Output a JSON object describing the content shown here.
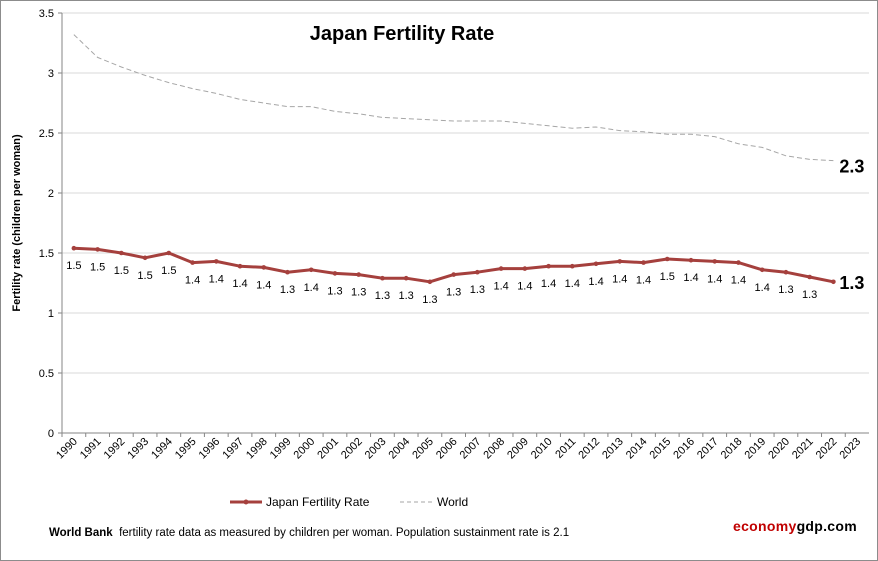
{
  "chart_data": {
    "type": "line",
    "title": "Japan Fertility Rate",
    "xlabel": "",
    "ylabel": "Fertility rate (children per woman)",
    "ylim": [
      0,
      3.5
    ],
    "yticks": [
      "0",
      "0.5",
      "1",
      "1.5",
      "2",
      "2.5",
      "3",
      "3.5"
    ],
    "grid": true,
    "legend": "bottom",
    "categories": [
      "1990",
      "1991",
      "1992",
      "1993",
      "1994",
      "1995",
      "1996",
      "1997",
      "1998",
      "1999",
      "2000",
      "2001",
      "2002",
      "2003",
      "2004",
      "2005",
      "2006",
      "2007",
      "2008",
      "2009",
      "2010",
      "2011",
      "2012",
      "2013",
      "2014",
      "2015",
      "2016",
      "2017",
      "2018",
      "2019",
      "2020",
      "2021",
      "2022",
      "2023"
    ],
    "series": [
      {
        "name": "Japan Fertility Rate",
        "color": "#a5403d",
        "values": [
          1.54,
          1.53,
          1.5,
          1.46,
          1.5,
          1.42,
          1.43,
          1.39,
          1.38,
          1.34,
          1.36,
          1.33,
          1.32,
          1.29,
          1.29,
          1.26,
          1.32,
          1.34,
          1.37,
          1.37,
          1.39,
          1.39,
          1.41,
          1.43,
          1.42,
          1.45,
          1.44,
          1.43,
          1.42,
          1.36,
          1.34,
          1.3,
          1.26,
          null
        ],
        "data_labels": [
          "1.5",
          "1.5",
          "1.5",
          "1.5",
          "1.5",
          "1.4",
          "1.4",
          "1.4",
          "1.4",
          "1.3",
          "1.4",
          "1.3",
          "1.3",
          "1.3",
          "1.3",
          "1.3",
          "1.3",
          "1.3",
          "1.4",
          "1.4",
          "1.4",
          "1.4",
          "1.4",
          "1.4",
          "1.4",
          "1.5",
          "1.4",
          "1.4",
          "1.4",
          "1.4",
          "1.3",
          "1.3"
        ],
        "end_label": "1.3"
      },
      {
        "name": "World",
        "color": "#a6a6a6",
        "values": [
          3.32,
          3.13,
          3.05,
          2.98,
          2.92,
          2.87,
          2.83,
          2.78,
          2.75,
          2.72,
          2.72,
          2.68,
          2.66,
          2.63,
          2.62,
          2.61,
          2.6,
          2.6,
          2.6,
          2.58,
          2.56,
          2.54,
          2.55,
          2.52,
          2.51,
          2.49,
          2.49,
          2.47,
          2.41,
          2.38,
          2.31,
          2.28,
          2.27,
          null
        ],
        "end_label": "2.3"
      }
    ]
  },
  "footnote": {
    "source": "World Bank",
    "text": "fertility rate data as measured by children per woman.  Population sustainment rate is 2.1"
  },
  "brand": {
    "part1": "economy",
    "part2": "gdp.com"
  }
}
